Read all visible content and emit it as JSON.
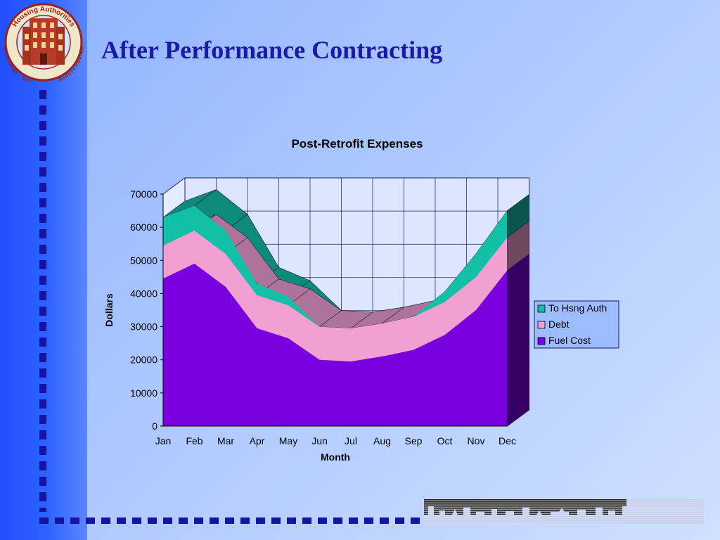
{
  "slide": {
    "title": "After Performance Contracting"
  },
  "logo": {
    "top_text": "Housing Authorities",
    "bottom_text": "Save Energy · Save Money · Reduce Pollution"
  },
  "chart_data": {
    "type": "area",
    "title": "Post-Retrofit Expenses",
    "xlabel": "Month",
    "ylabel": "Dollars",
    "categories": [
      "Jan",
      "Feb",
      "Mar",
      "Apr",
      "May",
      "Jun",
      "Jul",
      "Aug",
      "Sep",
      "Oct",
      "Nov",
      "Dec"
    ],
    "stacked": true,
    "three_d": true,
    "ylim": [
      0,
      70000
    ],
    "yticks": [
      "0",
      "10000",
      "20000",
      "30000",
      "40000",
      "50000",
      "60000",
      "70000"
    ],
    "grid": true,
    "legend_position": "right",
    "series": [
      {
        "name": "Fuel Cost",
        "color": "#7b00e0",
        "values": [
          44500,
          49000,
          42000,
          29500,
          26500,
          20000,
          19500,
          21000,
          23000,
          27500,
          35000,
          47000
        ]
      },
      {
        "name": "Debt",
        "color": "#f2a0d4",
        "values": [
          10000,
          10000,
          10000,
          10000,
          10000,
          10000,
          10000,
          10000,
          10000,
          10000,
          10000,
          10000
        ]
      },
      {
        "name": "To Hsng Auth",
        "color": "#12c0a8",
        "values": [
          8500,
          7500,
          7000,
          3500,
          2500,
          0,
          0,
          0,
          0,
          3000,
          7000,
          8000
        ]
      }
    ],
    "legend": [
      "To Hsng Auth",
      "Debt",
      "Fuel Cost"
    ]
  }
}
